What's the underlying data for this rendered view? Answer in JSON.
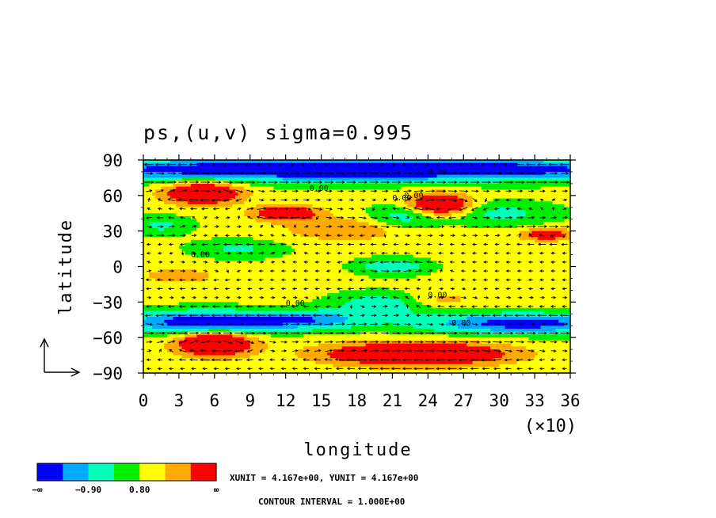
{
  "chart_data": {
    "type": "heatmap",
    "title": "ps,(u,v) sigma=0.995",
    "xlabel": "longitude",
    "ylabel": "latitude",
    "x_scale_note": "(×10)",
    "xlim": [
      0,
      36
    ],
    "ylim": [
      -90,
      90
    ],
    "x_ticks": [
      "0",
      "3",
      "6",
      "9",
      "12",
      "15",
      "18",
      "21",
      "24",
      "27",
      "30",
      "33",
      "36"
    ],
    "y_ticks": [
      "90",
      "60",
      "30",
      "0",
      "−30",
      "−60",
      "−90"
    ],
    "colorbar": {
      "colors": [
        "#0000ff",
        "#00aaff",
        "#00ffbb",
        "#00ee00",
        "#ffff00",
        "#ffaa00",
        "#ff0000"
      ],
      "labels": [
        "−∞",
        "−0.90",
        "0.80",
        "∞"
      ]
    },
    "contour_labels": [
      "0.00",
      "0.00",
      "0.00",
      "0.00",
      "0.00",
      "0.00",
      "0.00",
      "0.00"
    ],
    "footer": {
      "units": "XUNIT = 4.167e+00, YUNIT = 4.167e+00",
      "contour_interval": "CONTOUR INTERVAL = 1.000E+00"
    }
  }
}
